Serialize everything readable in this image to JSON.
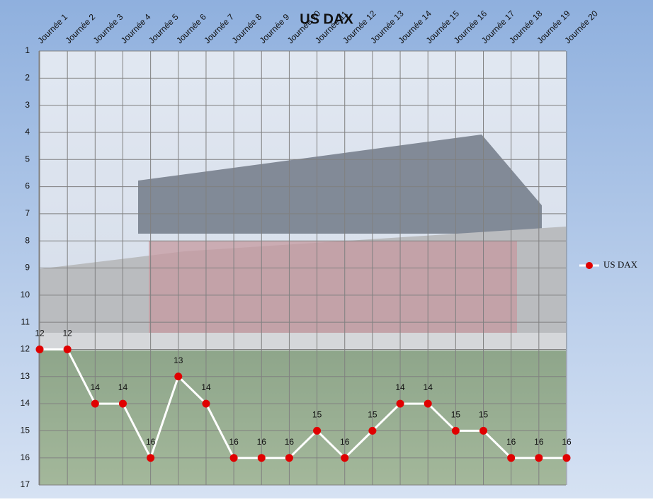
{
  "chart_data": {
    "type": "line",
    "title": "US DAX",
    "categories": [
      "Journée 1",
      "Journée 2",
      "Journée 3",
      "Journée 4",
      "Journée 5",
      "Journée 6",
      "Journée 7",
      "Journée 8",
      "Journée 9",
      "Journée 10",
      "Journée 11",
      "Journée 12",
      "Journée 13",
      "Journée 14",
      "Journée 15",
      "Journée 16",
      "Journée 17",
      "Journée 18",
      "Journée 19",
      "Journée 20"
    ],
    "series": [
      {
        "name": "US DAX",
        "color": "#ffffff",
        "marker_color": "#e00000",
        "values": [
          12,
          12,
          14,
          14,
          16,
          13,
          14,
          16,
          16,
          16,
          15,
          16,
          15,
          14,
          14,
          15,
          15,
          16,
          16,
          16
        ]
      }
    ],
    "ylim": [
      1,
      17
    ],
    "yticks": [
      1,
      2,
      3,
      4,
      5,
      6,
      7,
      8,
      9,
      10,
      11,
      12,
      13,
      14,
      15,
      16,
      17
    ],
    "y_reversed": true,
    "grid": true,
    "legend": "right",
    "data_labels": true
  }
}
